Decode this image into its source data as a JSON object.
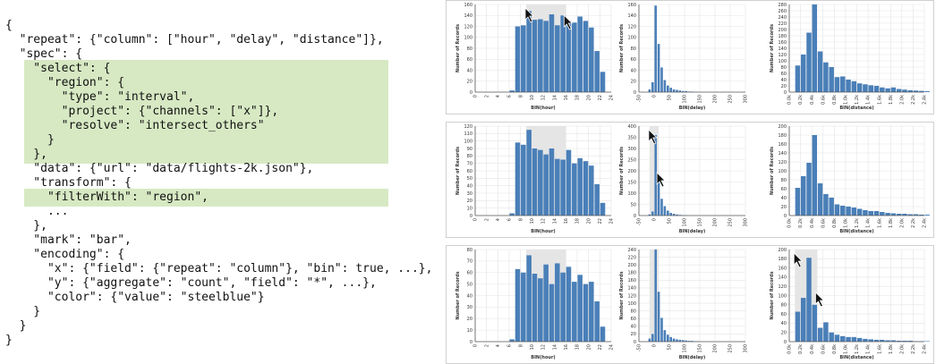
{
  "code": {
    "lines": [
      "{",
      "  \"repeat\": {\"column\": [\"hour\", \"delay\", \"distance\"]},",
      "  \"spec\": {",
      "    \"select\": {",
      "      \"region\": {",
      "        \"type\": \"interval\",",
      "        \"project\": {\"channels\": [\"x\"]},",
      "        \"resolve\": \"intersect_others\"",
      "      }",
      "    },",
      "    \"data\": {\"url\": \"data/flights-2k.json\"},",
      "    \"transform\": {",
      "      \"filterWith\": \"region\",",
      "      ...",
      "    },",
      "    \"mark\": \"bar\",",
      "    \"encoding\": {",
      "      \"x\": {\"field\": {\"repeat\": \"column\"}, \"bin\": true, ...},",
      "      \"y\": {\"aggregate\": \"count\", \"field\": \"*\", ...},",
      "      \"color\": {\"value\": \"steelblue\"}",
      "    }",
      "  }",
      "}"
    ],
    "highlight_color": "#d7e9c3"
  },
  "colors": {
    "bar": "#4a7fb8",
    "brush": "#e5e5e5",
    "grid": "#e4e4e4"
  },
  "ylabel": "Number of Records",
  "chart_data": [
    {
      "type": "bar",
      "row": 0,
      "col": 0,
      "xlabel": "BIN(hour)",
      "xlim": [
        0,
        24
      ],
      "xticks": [
        0,
        2,
        4,
        6,
        8,
        10,
        12,
        14,
        16,
        18,
        20,
        22,
        24
      ],
      "x": [
        6,
        7,
        8,
        9,
        10,
        11,
        12,
        13,
        14,
        15,
        16,
        17,
        18,
        19,
        20,
        21,
        22
      ],
      "values": [
        3,
        120,
        122,
        148,
        132,
        133,
        130,
        142,
        122,
        140,
        130,
        127,
        138,
        130,
        118,
        75,
        37
      ],
      "ylim": [
        0,
        160
      ],
      "yticks": [
        0,
        20,
        40,
        60,
        80,
        100,
        120,
        140,
        160
      ],
      "bin_width": 1,
      "brush": [
        9,
        16
      ],
      "cursor": "both"
    },
    {
      "type": "bar",
      "row": 0,
      "col": 1,
      "xlabel": "BIN(delay)",
      "xlim": [
        -50,
        300
      ],
      "xticks": [
        -50,
        0,
        50,
        100,
        150,
        200,
        250,
        300
      ],
      "x": [
        -20,
        -10,
        0,
        10,
        20,
        30,
        40,
        50,
        60,
        70,
        80,
        90,
        100,
        110,
        120
      ],
      "values": [
        5,
        18,
        158,
        88,
        45,
        22,
        12,
        8,
        5,
        4,
        3,
        2,
        2,
        1,
        1
      ],
      "ylim": [
        0,
        160
      ],
      "yticks": [
        0,
        20,
        40,
        60,
        80,
        100,
        120,
        140,
        160
      ],
      "bin_width": 10,
      "brush": null,
      "cursor": null
    },
    {
      "type": "bar",
      "row": 0,
      "col": 2,
      "xlabel": "BIN(distance)",
      "xlim": [
        0,
        2400
      ],
      "xticks": [
        0,
        200,
        400,
        600,
        800,
        1000,
        1200,
        1400,
        1600,
        1800,
        2000,
        2200,
        2400
      ],
      "xtick_labels": [
        "0.0k",
        "0.2k",
        "0.4k",
        "0.6k",
        "0.8k",
        "1.0k",
        "1.2k",
        "1.4k",
        "1.6k",
        "1.8k",
        "2.0k",
        "2.2k",
        "2.4k"
      ],
      "x": [
        100,
        200,
        300,
        400,
        500,
        600,
        700,
        800,
        900,
        1000,
        1100,
        1200,
        1300,
        1400,
        1500,
        1600,
        1700,
        1800,
        1900,
        2000,
        2100,
        2200,
        2300,
        2400
      ],
      "values": [
        85,
        120,
        190,
        280,
        130,
        95,
        80,
        48,
        50,
        40,
        35,
        28,
        25,
        22,
        20,
        15,
        12,
        15,
        10,
        8,
        6,
        5,
        4,
        3
      ],
      "ylim": [
        0,
        280
      ],
      "yticks": [
        0,
        20,
        40,
        60,
        80,
        100,
        120,
        140,
        160,
        180,
        200,
        220,
        240,
        260,
        280
      ],
      "bin_width": 100,
      "brush": null,
      "cursor": null
    },
    {
      "type": "bar",
      "row": 1,
      "col": 0,
      "xlabel": "BIN(hour)",
      "xlim": [
        0,
        24
      ],
      "xticks": [
        0,
        2,
        4,
        6,
        8,
        10,
        12,
        14,
        16,
        18,
        20,
        22,
        24
      ],
      "x": [
        6,
        7,
        8,
        9,
        10,
        11,
        12,
        13,
        14,
        15,
        16,
        17,
        18,
        19,
        20,
        21,
        22
      ],
      "values": [
        3,
        98,
        95,
        115,
        90,
        88,
        82,
        90,
        76,
        75,
        88,
        70,
        77,
        73,
        67,
        42,
        17
      ],
      "ylim": [
        0,
        120
      ],
      "yticks": [
        0,
        10,
        20,
        30,
        40,
        50,
        60,
        70,
        80,
        90,
        100,
        110,
        120
      ],
      "bin_width": 1,
      "brush": [
        9,
        16
      ],
      "cursor": null
    },
    {
      "type": "bar",
      "row": 1,
      "col": 1,
      "xlabel": "BIN(delay)",
      "xlim": [
        -50,
        300
      ],
      "xticks": [
        -50,
        0,
        50,
        100,
        150,
        200,
        250,
        300
      ],
      "x": [
        -20,
        -10,
        0,
        10,
        20,
        30,
        40,
        50,
        60,
        70,
        80,
        90,
        100
      ],
      "values": [
        5,
        18,
        360,
        160,
        75,
        42,
        22,
        12,
        8,
        5,
        3,
        2,
        1
      ],
      "ylim": [
        0,
        400
      ],
      "yticks": [
        0,
        50,
        100,
        150,
        200,
        250,
        300,
        350,
        400
      ],
      "bin_width": 10,
      "brush": [
        -15,
        15
      ],
      "cursor": "both"
    },
    {
      "type": "bar",
      "row": 1,
      "col": 2,
      "xlabel": "BIN(distance)",
      "xlim": [
        0,
        2400
      ],
      "xticks": [
        0,
        200,
        400,
        600,
        800,
        1000,
        1200,
        1400,
        1600,
        1800,
        2000,
        2200,
        2400
      ],
      "xtick_labels": [
        "0.0k",
        "0.2k",
        "0.4k",
        "0.6k",
        "0.8k",
        "1.0k",
        "1.2k",
        "1.4k",
        "1.6k",
        "1.8k",
        "2.0k",
        "2.2k",
        "2.4k"
      ],
      "x": [
        100,
        200,
        300,
        400,
        500,
        600,
        700,
        800,
        900,
        1000,
        1100,
        1200,
        1300,
        1400,
        1500,
        1600,
        1700,
        1800,
        1900,
        2000,
        2100,
        2200,
        2300,
        2400
      ],
      "values": [
        62,
        88,
        118,
        180,
        72,
        48,
        40,
        25,
        22,
        20,
        18,
        15,
        12,
        10,
        10,
        8,
        6,
        5,
        4,
        4,
        3,
        3,
        2,
        2
      ],
      "ylim": [
        0,
        200
      ],
      "yticks": [
        0,
        20,
        40,
        60,
        80,
        100,
        120,
        140,
        160,
        180,
        200
      ],
      "bin_width": 100,
      "brush": null,
      "cursor": null
    },
    {
      "type": "bar",
      "row": 2,
      "col": 0,
      "xlabel": "BIN(hour)",
      "xlim": [
        0,
        24
      ],
      "xticks": [
        0,
        2,
        4,
        6,
        8,
        10,
        12,
        14,
        16,
        18,
        20,
        22,
        24
      ],
      "x": [
        6,
        7,
        8,
        9,
        10,
        11,
        12,
        13,
        14,
        15,
        16,
        17,
        18,
        19,
        20,
        21,
        22
      ],
      "values": [
        2,
        63,
        60,
        75,
        59,
        55,
        67,
        50,
        68,
        60,
        65,
        52,
        58,
        50,
        52,
        35,
        13
      ],
      "ylim": [
        0,
        80
      ],
      "yticks": [
        0,
        10,
        20,
        30,
        40,
        50,
        60,
        70,
        80
      ],
      "bin_width": 1,
      "brush": [
        9,
        16
      ],
      "cursor": null
    },
    {
      "type": "bar",
      "row": 2,
      "col": 1,
      "xlabel": "BIN(delay)",
      "xlim": [
        -50,
        300
      ],
      "xticks": [
        -50,
        0,
        50,
        100,
        150,
        200,
        250,
        300
      ],
      "x": [
        -20,
        -10,
        0,
        10,
        20,
        30,
        40,
        50,
        60,
        70,
        80,
        90,
        100,
        110,
        120,
        130,
        140
      ],
      "values": [
        8,
        20,
        240,
        130,
        62,
        30,
        18,
        12,
        8,
        6,
        5,
        4,
        3,
        2,
        2,
        1,
        1
      ],
      "ylim": [
        0,
        240
      ],
      "yticks": [
        0,
        20,
        40,
        60,
        80,
        100,
        120,
        140,
        160,
        180,
        200,
        220,
        240
      ],
      "bin_width": 10,
      "brush": [
        -15,
        15
      ],
      "cursor": null
    },
    {
      "type": "bar",
      "row": 2,
      "col": 2,
      "xlabel": "BIN(distance)",
      "xlim": [
        0,
        2400
      ],
      "xticks": [
        0,
        200,
        400,
        600,
        800,
        1000,
        1200,
        1400,
        1600,
        1800,
        2000,
        2200,
        2400
      ],
      "xtick_labels": [
        "0.0k",
        "0.2k",
        "0.4k",
        "0.6k",
        "0.8k",
        "1.0k",
        "1.2k",
        "1.4k",
        "1.6k",
        "1.8k",
        "2.0k",
        "2.2k",
        "2.4k"
      ],
      "x": [
        100,
        200,
        300,
        400,
        500,
        600,
        700,
        800,
        900,
        1000,
        1100,
        1200,
        1300,
        1400,
        1500,
        1600,
        1700,
        1800,
        1900,
        2000,
        2100,
        2200,
        2300,
        2400
      ],
      "values": [
        65,
        95,
        182,
        80,
        30,
        42,
        20,
        15,
        12,
        10,
        10,
        8,
        6,
        5,
        4,
        4,
        3,
        3,
        2,
        2,
        2,
        1,
        1,
        1
      ],
      "ylim": [
        0,
        200
      ],
      "yticks": [
        0,
        20,
        40,
        60,
        80,
        100,
        120,
        140,
        160,
        180,
        200
      ],
      "bin_width": 100,
      "brush": [
        100,
        500
      ],
      "cursor": "both"
    }
  ]
}
